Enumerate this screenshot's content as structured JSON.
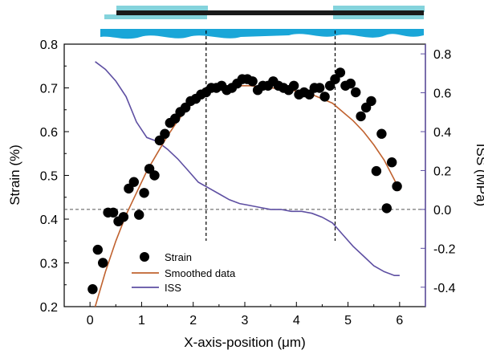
{
  "chart_data": {
    "type": "scatter",
    "title": "",
    "xlabel": "X-axis-position (μm)",
    "ylabel": "Strain (%)",
    "y2label": "ISS (MPa)",
    "xlim": [
      -0.5,
      6.5
    ],
    "ylim": [
      0.2,
      0.8
    ],
    "y2lim": [
      -0.5,
      0.85
    ],
    "xticks": [
      "0",
      "1",
      "2",
      "3",
      "4",
      "5",
      "6"
    ],
    "yticks": [
      "0.2",
      "0.3",
      "0.4",
      "0.5",
      "0.6",
      "0.7",
      "0.8"
    ],
    "y2ticks": [
      "-0.4",
      "-0.2",
      "0.0",
      "0.2",
      "0.4",
      "0.6",
      "0.8"
    ],
    "grid": false,
    "legend_position": "bottom-left",
    "colors": {
      "strain": "#000000",
      "smoothed": "#c0622f",
      "iss": "#5e4fa2",
      "schematic_light": "#84d3dc",
      "schematic_blue": "#1aa6d8",
      "schematic_bar": "#1a1a1a"
    },
    "reference_lines": {
      "vertical_x": [
        2.25,
        4.75
      ],
      "horizontal_y2": 0.0
    },
    "series": [
      {
        "name": "Strain",
        "kind": "scatter",
        "axis": "left",
        "x": [
          0.05,
          0.15,
          0.25,
          0.35,
          0.45,
          0.55,
          0.65,
          0.75,
          0.85,
          0.95,
          1.05,
          1.15,
          1.25,
          1.35,
          1.45,
          1.55,
          1.65,
          1.75,
          1.85,
          1.95,
          2.05,
          2.15,
          2.25,
          2.35,
          2.45,
          2.55,
          2.65,
          2.75,
          2.85,
          2.95,
          3.05,
          3.15,
          3.25,
          3.35,
          3.45,
          3.55,
          3.65,
          3.75,
          3.85,
          3.95,
          4.05,
          4.15,
          4.25,
          4.35,
          4.45,
          4.55,
          4.65,
          4.75,
          4.85,
          4.95,
          5.05,
          5.15,
          5.25,
          5.35,
          5.45,
          5.55,
          5.65,
          5.75,
          5.85,
          5.95
        ],
        "y": [
          0.24,
          0.33,
          0.3,
          0.415,
          0.415,
          0.395,
          0.405,
          0.47,
          0.485,
          0.41,
          0.46,
          0.515,
          0.5,
          0.58,
          0.595,
          0.62,
          0.63,
          0.645,
          0.655,
          0.67,
          0.675,
          0.685,
          0.69,
          0.7,
          0.7,
          0.705,
          0.695,
          0.7,
          0.71,
          0.72,
          0.72,
          0.715,
          0.695,
          0.705,
          0.705,
          0.715,
          0.705,
          0.7,
          0.695,
          0.705,
          0.685,
          0.69,
          0.685,
          0.7,
          0.7,
          0.68,
          0.705,
          0.72,
          0.735,
          0.705,
          0.71,
          0.69,
          0.635,
          0.655,
          0.67,
          0.51,
          0.595,
          0.425,
          0.53,
          0.475
        ]
      },
      {
        "name": "Smoothed data",
        "kind": "line",
        "axis": "left",
        "x": [
          0.1,
          0.3,
          0.5,
          0.7,
          0.9,
          1.1,
          1.3,
          1.5,
          1.7,
          1.9,
          2.1,
          2.3,
          2.5,
          2.7,
          2.9,
          3.1,
          3.3,
          3.5,
          3.7,
          3.9,
          4.1,
          4.3,
          4.5,
          4.7,
          4.9,
          5.1,
          5.3,
          5.5,
          5.7,
          5.9,
          6.0
        ],
        "y": [
          0.2,
          0.28,
          0.35,
          0.41,
          0.46,
          0.51,
          0.55,
          0.59,
          0.625,
          0.655,
          0.675,
          0.69,
          0.7,
          0.703,
          0.705,
          0.705,
          0.703,
          0.7,
          0.698,
          0.695,
          0.69,
          0.685,
          0.675,
          0.665,
          0.645,
          0.625,
          0.6,
          0.57,
          0.535,
          0.49,
          0.465
        ]
      },
      {
        "name": "ISS",
        "kind": "line",
        "axis": "right",
        "x": [
          0.1,
          0.3,
          0.5,
          0.7,
          0.9,
          1.1,
          1.3,
          1.5,
          1.7,
          1.9,
          2.1,
          2.3,
          2.5,
          2.7,
          2.9,
          3.1,
          3.3,
          3.5,
          3.7,
          3.9,
          4.1,
          4.3,
          4.5,
          4.7,
          4.9,
          5.1,
          5.3,
          5.5,
          5.7,
          5.9,
          6.0
        ],
        "y": [
          0.76,
          0.72,
          0.66,
          0.58,
          0.45,
          0.37,
          0.35,
          0.31,
          0.26,
          0.2,
          0.14,
          0.11,
          0.08,
          0.05,
          0.03,
          0.02,
          0.01,
          0.0,
          0.0,
          -0.01,
          -0.01,
          -0.02,
          -0.04,
          -0.07,
          -0.13,
          -0.19,
          -0.24,
          -0.29,
          -0.32,
          -0.34,
          -0.34
        ]
      }
    ]
  }
}
